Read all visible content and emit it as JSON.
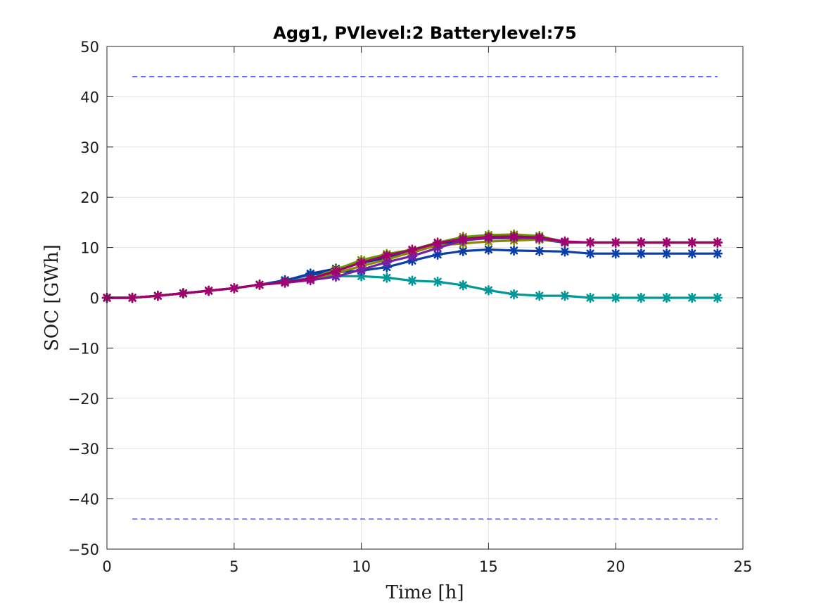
{
  "chart_data": {
    "type": "line",
    "title": "Agg1, PVlevel:2 Batterylevel:75",
    "xlabel": "Time [h]",
    "ylabel": "SOC [GWh]",
    "xlim": [
      0,
      25
    ],
    "ylim": [
      -50,
      50
    ],
    "xticks": [
      0,
      5,
      10,
      15,
      20,
      25
    ],
    "xtick_labels": [
      "0",
      "5",
      "10",
      "15",
      "20",
      "25"
    ],
    "yticks": [
      50,
      40,
      30,
      20,
      10,
      0,
      -10,
      -20,
      -30,
      -40,
      -50
    ],
    "ytick_labels": [
      "50",
      "40",
      "30",
      "20",
      "10",
      "0",
      "−10",
      "−20",
      "−30",
      "−40",
      "−50"
    ],
    "grid": true,
    "bounds": [
      {
        "x": [
          1,
          24
        ],
        "y": [
          44,
          44
        ],
        "color": "#0000ff",
        "style": "dashed"
      },
      {
        "x": [
          1,
          24
        ],
        "y": [
          -44,
          -44
        ],
        "color": "#0000ff",
        "style": "dashed"
      }
    ],
    "x": [
      0,
      1,
      2,
      3,
      4,
      5,
      6,
      7,
      8,
      9,
      10,
      11,
      12,
      13,
      14,
      15,
      16,
      17,
      18,
      19,
      20,
      21,
      22,
      23,
      24
    ],
    "series": [
      {
        "color": "#009999",
        "values": [
          0,
          0,
          0.4,
          0.9,
          1.4,
          1.9,
          2.6,
          3.3,
          3.9,
          4.3,
          4.3,
          4.0,
          3.4,
          3.2,
          2.5,
          1.5,
          0.7,
          0.4,
          0.4,
          0.0,
          0.0,
          0.0,
          0.0,
          0.0,
          0.0
        ]
      },
      {
        "color": "#003399",
        "values": [
          0,
          0,
          0.4,
          0.9,
          1.4,
          1.9,
          2.6,
          3.4,
          4.8,
          5.8,
          6.9,
          8.0,
          9.0,
          10.5,
          11.6,
          11.8,
          11.9,
          11.6,
          11.0,
          11.0,
          11.0,
          11.0,
          11.0,
          11.0,
          11.0
        ]
      },
      {
        "color": "#0a3ea8",
        "values": [
          0,
          0,
          0.4,
          0.9,
          1.4,
          1.9,
          2.6,
          3.5,
          4.6,
          5.1,
          5.4,
          6.1,
          7.4,
          8.6,
          9.3,
          9.6,
          9.4,
          9.3,
          9.2,
          8.8,
          8.8,
          8.8,
          8.8,
          8.8,
          8.8
        ]
      },
      {
        "color": "#669900",
        "values": [
          0,
          0,
          0.4,
          0.9,
          1.4,
          1.9,
          2.6,
          3.1,
          3.8,
          5.6,
          7.5,
          8.7,
          9.6,
          11.0,
          12.1,
          12.5,
          12.6,
          12.3,
          11.1,
          11.0,
          11.0,
          11.0,
          11.0,
          11.0,
          11.0
        ]
      },
      {
        "color": "#8a8a00",
        "values": [
          0,
          0,
          0.4,
          0.9,
          1.4,
          1.9,
          2.6,
          3.1,
          3.7,
          4.9,
          6.3,
          7.6,
          9.1,
          10.4,
          10.8,
          11.2,
          11.4,
          11.6,
          11.1,
          11.0,
          11.0,
          11.0,
          11.0,
          11.0,
          11.0
        ]
      },
      {
        "color": "#7a1fa3",
        "values": [
          0,
          0,
          0.4,
          0.9,
          1.4,
          1.9,
          2.6,
          3.0,
          3.5,
          4.2,
          5.6,
          7.1,
          8.3,
          9.9,
          11.4,
          11.9,
          12.0,
          11.8,
          11.1,
          11.0,
          11.0,
          11.0,
          11.0,
          11.0,
          11.0
        ]
      },
      {
        "color": "#a3006f",
        "values": [
          0,
          0,
          0.4,
          0.9,
          1.4,
          1.9,
          2.6,
          3.1,
          3.8,
          5.3,
          7.0,
          8.4,
          9.5,
          10.9,
          11.7,
          12.1,
          12.2,
          12.0,
          11.2,
          11.0,
          11.0,
          11.0,
          11.0,
          11.0,
          11.0
        ]
      }
    ]
  }
}
